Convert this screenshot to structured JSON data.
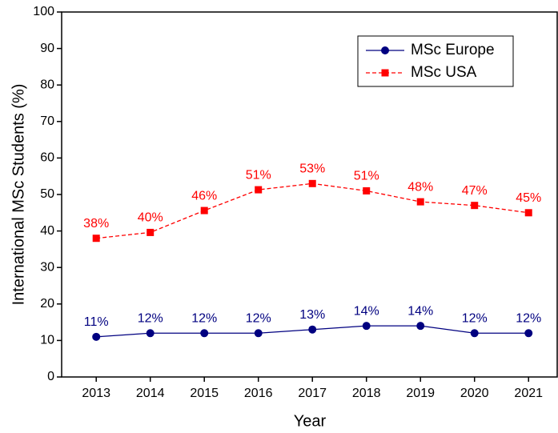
{
  "chart_data": {
    "type": "line",
    "x": [
      2013,
      2014,
      2015,
      2016,
      2017,
      2018,
      2019,
      2020,
      2021
    ],
    "xlabel": "Year",
    "ylabel": "International MSc Students (%)",
    "xlim": [
      2012.36,
      2021.53
    ],
    "xticks": [
      2013,
      2014,
      2015,
      2016,
      2017,
      2018,
      2019,
      2020,
      2021
    ],
    "ylim": [
      0,
      100
    ],
    "yticks": [
      0,
      10,
      20,
      30,
      40,
      50,
      60,
      70,
      80,
      90,
      100
    ],
    "legend": "upper right",
    "series": [
      {
        "name": "MSc Europe",
        "color": "#000080",
        "marker": "circle",
        "dash": false,
        "values": [
          11,
          12,
          12,
          12,
          13,
          14,
          14,
          12,
          12
        ],
        "value_labels": [
          "11%",
          "12%",
          "12%",
          "12%",
          "13%",
          "14%",
          "14%",
          "12%",
          "12%"
        ]
      },
      {
        "name": "MSc USA",
        "color": "#ff0000",
        "marker": "square",
        "dash": true,
        "values": [
          38,
          39.6,
          45.6,
          51.3,
          53,
          51,
          48,
          47,
          45
        ],
        "value_labels": [
          "38%",
          "40%",
          "46%",
          "51%",
          "53%",
          "51%",
          "48%",
          "47%",
          "45%"
        ]
      }
    ]
  }
}
